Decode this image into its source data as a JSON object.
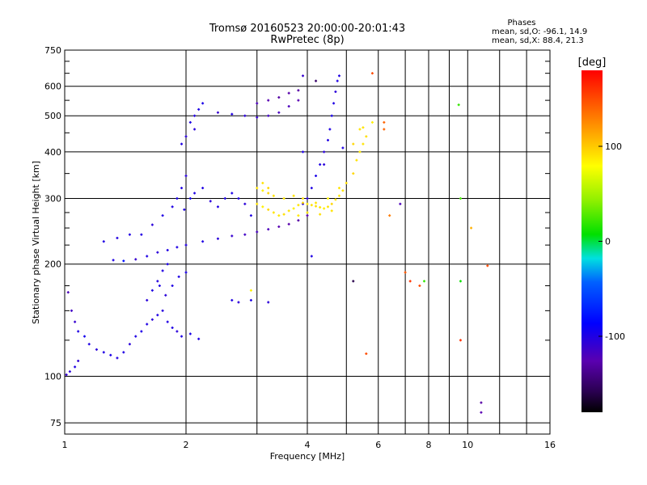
{
  "chart_data": {
    "type": "scatter",
    "title": "Tromsø 20160523 20:00:00-20:01:43",
    "subtitle": "RwPretec (8p)",
    "xlabel": "Frequency [MHz]",
    "ylabel": "Stationary phase Virtual Height [km]",
    "x_scale": "log",
    "y_scale": "log",
    "xlim": [
      1,
      16
    ],
    "ylim": [
      70,
      750
    ],
    "x_ticks": [
      1,
      2,
      4,
      6,
      8,
      10,
      16
    ],
    "x_tick_labels": [
      "1",
      "2",
      "4",
      "6",
      "8",
      "10",
      "16"
    ],
    "x_minor_ticks": [
      3,
      5,
      7,
      9,
      12,
      14
    ],
    "y_ticks": [
      75,
      100,
      200,
      300,
      400,
      500,
      600,
      750
    ],
    "y_tick_labels": [
      "75",
      "100",
      "200",
      "300",
      "400",
      "500",
      "600",
      "750"
    ],
    "y_minor_ticks": [
      125,
      150,
      175,
      225,
      250,
      275,
      350,
      450,
      550,
      650,
      700
    ],
    "grid": true,
    "stats": {
      "heading": "Phases",
      "line1": "mean, sd,O: -96.1, 14.9",
      "line2": "mean, sd,X:  88.4, 21.3"
    },
    "colorbar": {
      "label": "[deg]",
      "ticks": [
        100,
        0,
        -100
      ],
      "tick_labels": [
        "100",
        "0",
        "-100"
      ],
      "range": [
        -180,
        180
      ],
      "colormap": "rainbow (black-purple-blue-cyan-green-yellow-orange-red)"
    },
    "series": [
      {
        "points": [
          [
            1.01,
            101,
            -110
          ],
          [
            1.03,
            103,
            -105
          ],
          [
            1.06,
            106,
            -100
          ],
          [
            1.08,
            110,
            -108
          ],
          [
            1.02,
            168,
            -120
          ],
          [
            1.04,
            150,
            -115
          ],
          [
            1.06,
            140,
            -110
          ],
          [
            1.08,
            132,
            -100
          ],
          [
            1.12,
            128,
            -95
          ],
          [
            1.15,
            122,
            -100
          ],
          [
            1.2,
            118,
            -105
          ],
          [
            1.25,
            116,
            -100
          ],
          [
            1.3,
            114,
            -98
          ],
          [
            1.35,
            112,
            -102
          ],
          [
            1.4,
            116,
            -100
          ],
          [
            1.45,
            122,
            -105
          ],
          [
            1.5,
            128,
            -100
          ],
          [
            1.55,
            132,
            -98
          ],
          [
            1.6,
            138,
            -100
          ],
          [
            1.65,
            142,
            -105
          ],
          [
            1.7,
            146,
            -100
          ],
          [
            1.75,
            150,
            -102
          ],
          [
            1.8,
            140,
            -100
          ],
          [
            1.85,
            135,
            -100
          ],
          [
            1.9,
            132,
            -105
          ],
          [
            1.95,
            128,
            -100
          ],
          [
            2.05,
            130,
            -98
          ],
          [
            2.15,
            126,
            -100
          ],
          [
            1.6,
            160,
            -105
          ],
          [
            1.65,
            170,
            -100
          ],
          [
            1.7,
            180,
            -102
          ],
          [
            1.75,
            192,
            -100
          ],
          [
            1.8,
            200,
            -98
          ],
          [
            1.72,
            175,
            -100
          ],
          [
            1.78,
            165,
            -105
          ],
          [
            1.85,
            175,
            -100
          ],
          [
            1.92,
            185,
            -100
          ],
          [
            2.0,
            190,
            -98
          ],
          [
            1.32,
            205,
            -100
          ],
          [
            1.4,
            204,
            -80
          ],
          [
            1.5,
            206,
            -110
          ],
          [
            1.6,
            210,
            -100
          ],
          [
            1.7,
            215,
            -105
          ],
          [
            1.8,
            218,
            -100
          ],
          [
            1.9,
            222,
            -100
          ],
          [
            2.0,
            225,
            -102
          ],
          [
            2.2,
            230,
            -100
          ],
          [
            2.4,
            234,
            -105
          ],
          [
            2.6,
            238,
            -110
          ],
          [
            2.8,
            240,
            -115
          ],
          [
            3.0,
            244,
            -118
          ],
          [
            3.2,
            248,
            -120
          ],
          [
            3.4,
            252,
            -125
          ],
          [
            3.6,
            256,
            -128
          ],
          [
            3.8,
            262,
            -130
          ],
          [
            4.0,
            270,
            -125
          ],
          [
            1.55,
            240,
            -100
          ],
          [
            1.65,
            255,
            -105
          ],
          [
            1.75,
            270,
            -100
          ],
          [
            1.85,
            285,
            -100
          ],
          [
            1.9,
            300,
            -98
          ],
          [
            1.95,
            320,
            -100
          ],
          [
            2.0,
            345,
            -105
          ],
          [
            1.98,
            280,
            -100
          ],
          [
            2.05,
            300,
            -95
          ],
          [
            2.1,
            310,
            -100
          ],
          [
            2.2,
            320,
            -100
          ],
          [
            2.3,
            295,
            -105
          ],
          [
            2.4,
            285,
            -100
          ],
          [
            2.5,
            300,
            -100
          ],
          [
            2.6,
            310,
            -98
          ],
          [
            2.7,
            300,
            -100
          ],
          [
            2.8,
            290,
            -105
          ],
          [
            2.9,
            270,
            -100
          ],
          [
            1.95,
            420,
            -100
          ],
          [
            2.0,
            440,
            -105
          ],
          [
            2.05,
            480,
            -100
          ],
          [
            2.1,
            500,
            -102
          ],
          [
            2.15,
            520,
            -100
          ],
          [
            2.2,
            540,
            -98
          ],
          [
            2.1,
            460,
            -105
          ],
          [
            2.4,
            510,
            -110
          ],
          [
            2.6,
            505,
            -100
          ],
          [
            2.8,
            500,
            -105
          ],
          [
            3.0,
            495,
            -110
          ],
          [
            3.2,
            500,
            -115
          ],
          [
            3.4,
            510,
            -118
          ],
          [
            3.6,
            530,
            -120
          ],
          [
            3.8,
            550,
            -125
          ],
          [
            3.0,
            540,
            -120
          ],
          [
            3.2,
            550,
            -125
          ],
          [
            3.4,
            560,
            -130
          ],
          [
            3.6,
            575,
            -128
          ],
          [
            3.8,
            585,
            -130
          ],
          [
            3.9,
            290,
            -100
          ],
          [
            4.0,
            300,
            -105
          ],
          [
            4.1,
            320,
            -100
          ],
          [
            4.2,
            345,
            -98
          ],
          [
            4.3,
            370,
            -100
          ],
          [
            4.4,
            400,
            -105
          ],
          [
            4.5,
            430,
            -100
          ],
          [
            4.55,
            460,
            -100
          ],
          [
            4.6,
            500,
            -98
          ],
          [
            4.65,
            540,
            -100
          ],
          [
            4.7,
            580,
            -105
          ],
          [
            4.75,
            620,
            -100
          ],
          [
            3.9,
            640,
            -110
          ],
          [
            4.8,
            640,
            -100
          ],
          [
            2.6,
            160,
            -100
          ],
          [
            2.7,
            158,
            -105
          ],
          [
            2.9,
            160,
            -100
          ],
          [
            3.2,
            158,
            -105
          ],
          [
            1.25,
            230,
            -100
          ],
          [
            1.35,
            235,
            -102
          ],
          [
            1.45,
            240,
            -100
          ],
          [
            3.9,
            400,
            -100
          ],
          [
            4.1,
            210,
            -100
          ],
          [
            4.4,
            370,
            -105
          ]
        ]
      },
      {
        "points": [
          [
            3.0,
            290,
            90
          ],
          [
            3.1,
            285,
            85
          ],
          [
            3.2,
            280,
            95
          ],
          [
            3.3,
            275,
            90
          ],
          [
            3.4,
            270,
            88
          ],
          [
            3.5,
            272,
            92
          ],
          [
            3.6,
            278,
            90
          ],
          [
            3.7,
            282,
            85
          ],
          [
            3.8,
            288,
            90
          ],
          [
            3.9,
            292,
            95
          ],
          [
            4.0,
            290,
            88
          ],
          [
            4.1,
            288,
            90
          ],
          [
            4.2,
            286,
            92
          ],
          [
            4.3,
            284,
            90
          ],
          [
            4.4,
            282,
            85
          ],
          [
            4.5,
            285,
            90
          ],
          [
            4.6,
            290,
            95
          ],
          [
            4.7,
            298,
            90
          ],
          [
            4.8,
            305,
            88
          ],
          [
            4.9,
            315,
            90
          ],
          [
            5.0,
            330,
            92
          ],
          [
            3.0,
            320,
            90
          ],
          [
            3.1,
            315,
            85
          ],
          [
            3.2,
            310,
            95
          ],
          [
            3.3,
            305,
            90
          ],
          [
            3.5,
            300,
            88
          ],
          [
            3.7,
            305,
            90
          ],
          [
            3.9,
            300,
            92
          ],
          [
            4.2,
            292,
            90
          ],
          [
            4.5,
            300,
            85
          ],
          [
            4.8,
            320,
            90
          ],
          [
            5.2,
            350,
            95
          ],
          [
            5.3,
            380,
            90
          ],
          [
            5.4,
            400,
            88
          ],
          [
            5.5,
            420,
            90
          ],
          [
            5.6,
            440,
            92
          ],
          [
            5.5,
            465,
            90
          ],
          [
            5.8,
            480,
            85
          ],
          [
            5.2,
            420,
            95
          ],
          [
            5.4,
            460,
            90
          ],
          [
            3.8,
            270,
            88
          ],
          [
            4.0,
            275,
            90
          ],
          [
            4.3,
            272,
            92
          ],
          [
            4.6,
            278,
            90
          ],
          [
            2.9,
            170,
            85
          ],
          [
            3.1,
            330,
            90
          ],
          [
            3.2,
            320,
            95
          ]
        ]
      },
      {
        "points": [
          [
            6.2,
            480,
            140
          ],
          [
            5.8,
            650,
            150
          ],
          [
            6.4,
            270,
            130
          ],
          [
            7.2,
            180,
            160
          ],
          [
            7.0,
            190,
            145
          ],
          [
            7.6,
            175,
            150
          ],
          [
            7.8,
            180,
            20
          ],
          [
            9.6,
            180,
            10
          ],
          [
            9.5,
            535,
            20
          ],
          [
            9.6,
            300,
            25
          ],
          [
            10.2,
            250,
            110
          ],
          [
            11.2,
            198,
            150
          ],
          [
            9.6,
            125,
            160
          ],
          [
            5.6,
            115,
            150
          ],
          [
            6.2,
            460,
            140
          ]
        ]
      },
      {
        "points": [
          [
            10.8,
            85,
            -130
          ],
          [
            10.8,
            80,
            -125
          ],
          [
            6.8,
            290,
            -120
          ],
          [
            5.2,
            180,
            -160
          ],
          [
            4.9,
            410,
            -100
          ],
          [
            4.2,
            620,
            -150
          ]
        ]
      }
    ]
  }
}
